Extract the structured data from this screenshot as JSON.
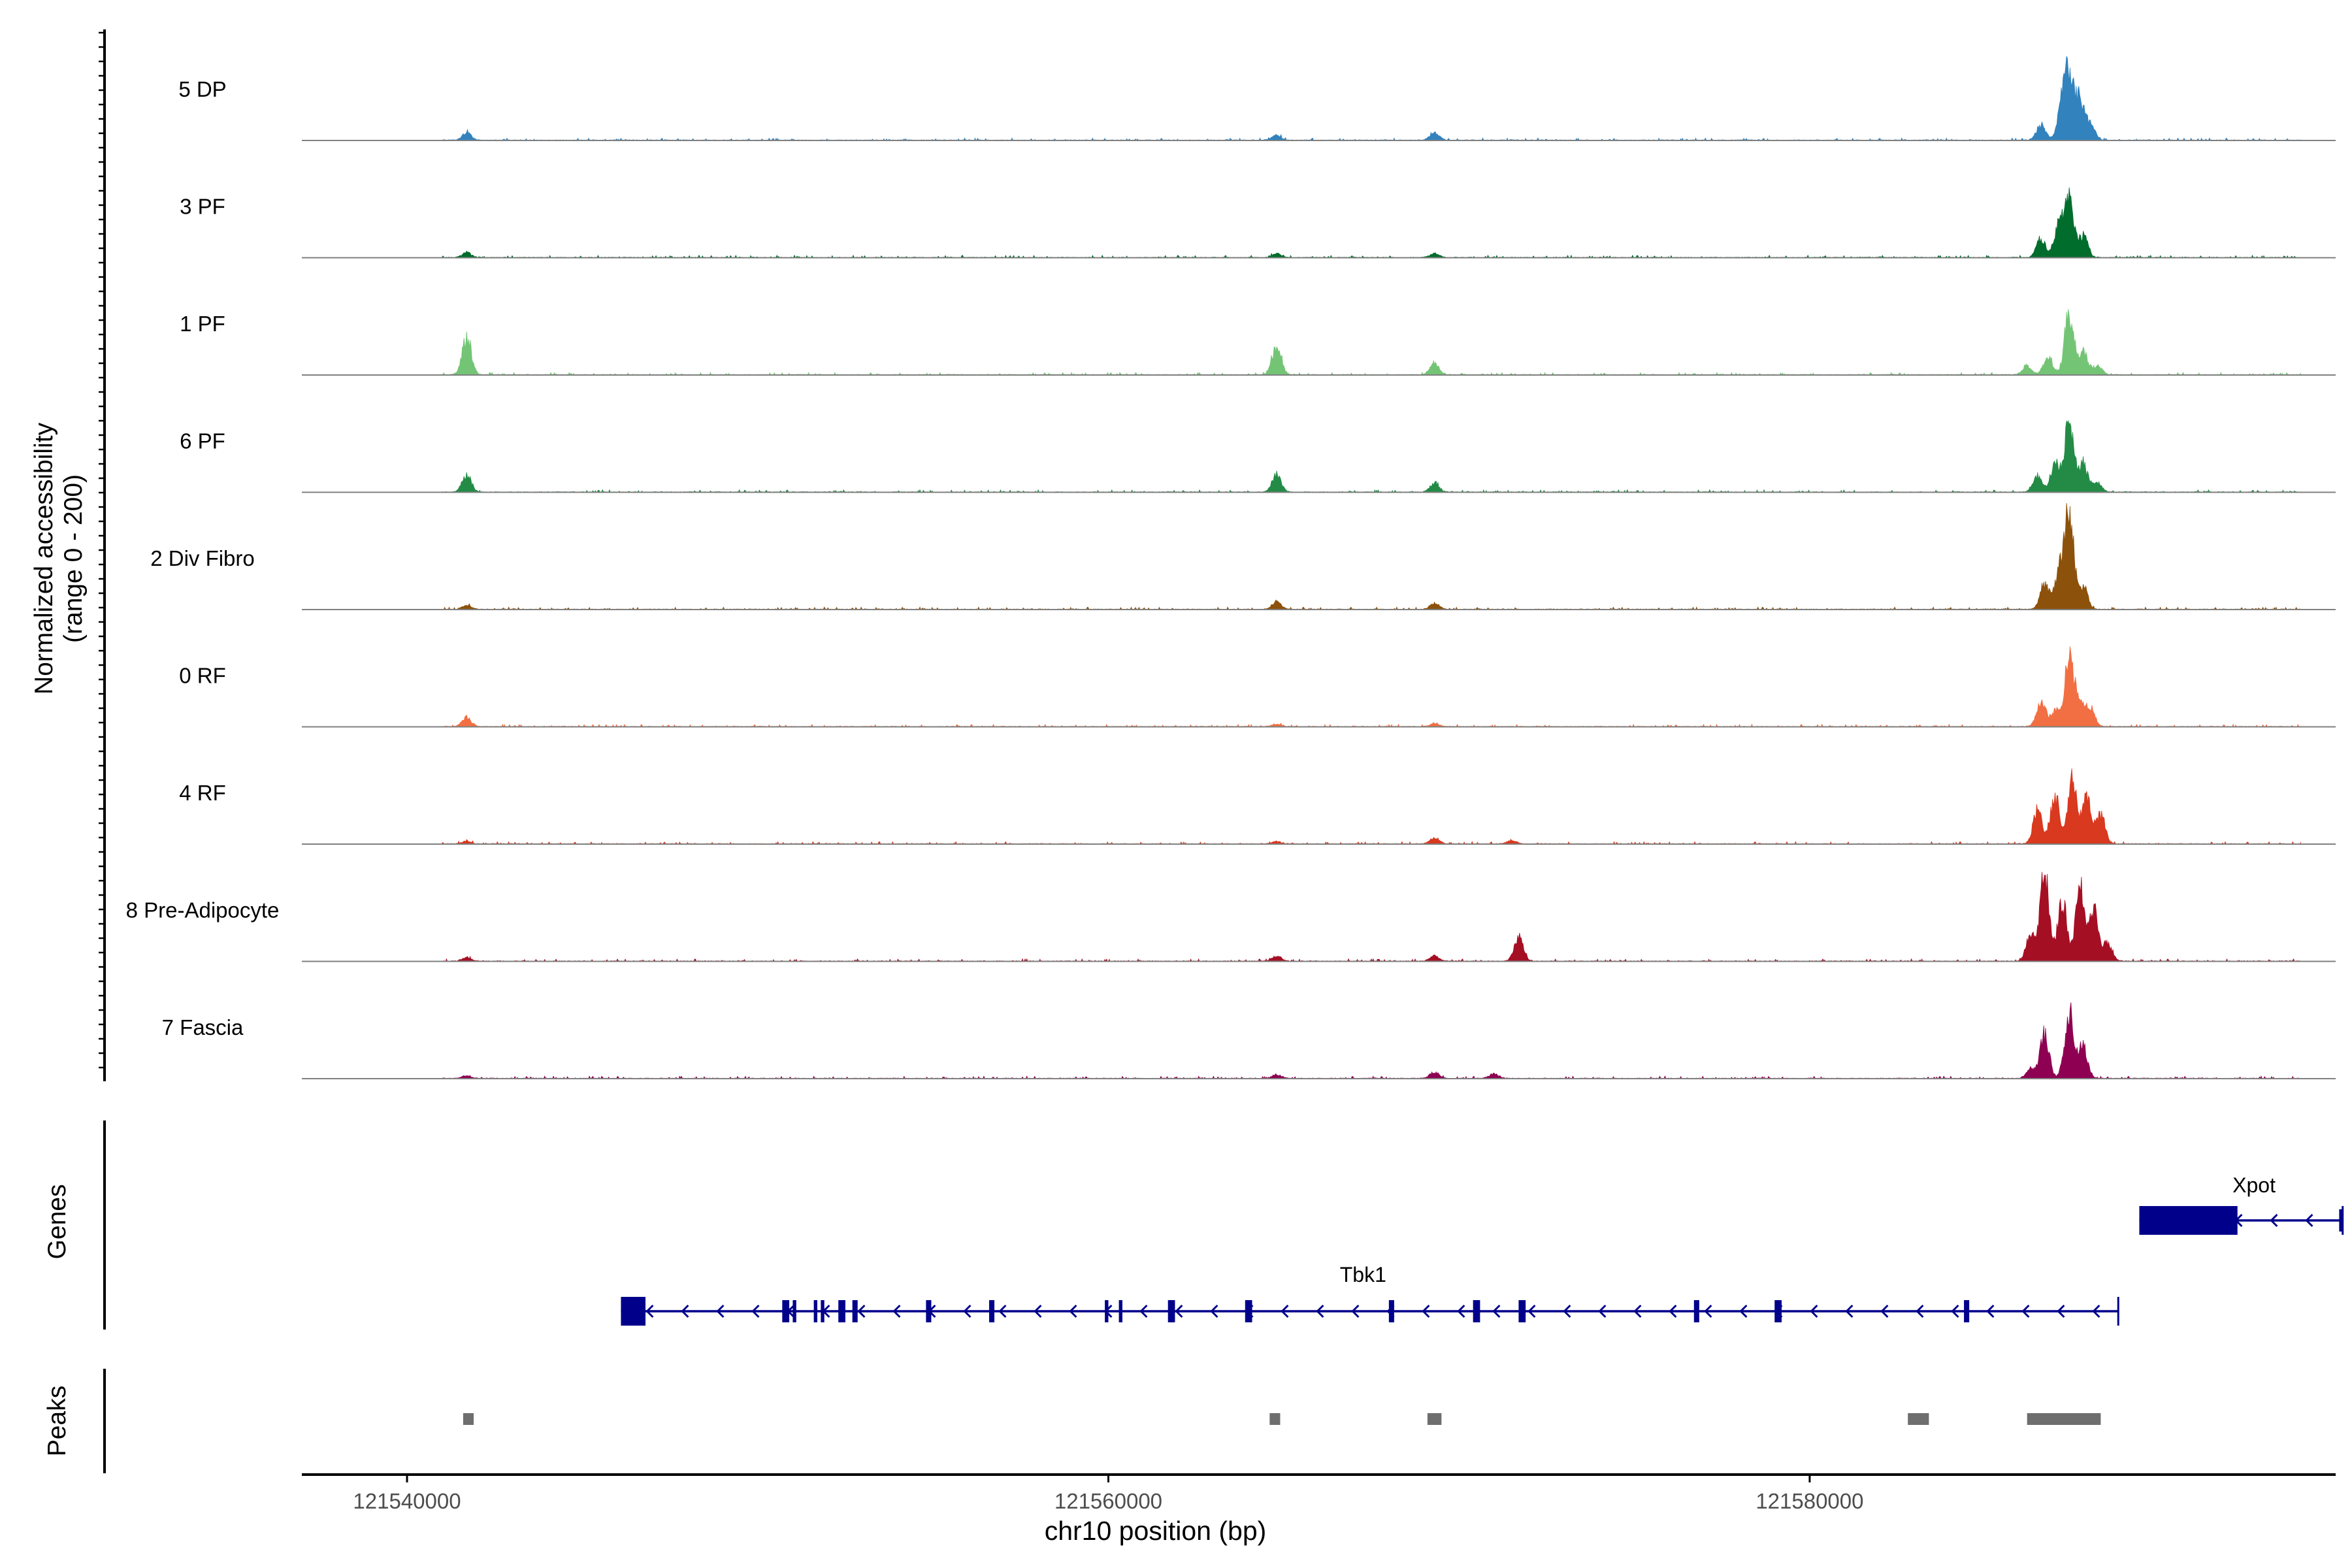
{
  "chart_data": {
    "type": "area",
    "subtype": "genome-coverage-plot",
    "chromosome": "chr10",
    "xlabel": "chr10 position (bp)",
    "xlim": [
      121537000,
      121595000
    ],
    "xticks": [
      121540000,
      121560000,
      121580000
    ],
    "xtick_labels": [
      "121540000",
      "121560000",
      "121580000"
    ],
    "ylabel_line1": "Normalized accessibility",
    "ylabel_line2": "(range 0 - 200)",
    "ylim": [
      0,
      200
    ],
    "panel_labels": {
      "genes": "Genes",
      "peaks": "Peaks"
    },
    "series": [
      {
        "name": "5 DP",
        "color": "#3182bd",
        "peaks": [
          [
            121541700,
            12
          ],
          [
            121564800,
            8
          ],
          [
            121569300,
            12
          ],
          [
            121586600,
            25
          ],
          [
            121587200,
            55
          ],
          [
            121587400,
            100
          ],
          [
            121587700,
            65
          ],
          [
            121588000,
            25
          ]
        ]
      },
      {
        "name": "3 PF",
        "color": "#006d2c",
        "peaks": [
          [
            121541700,
            8
          ],
          [
            121564800,
            6
          ],
          [
            121569300,
            6
          ],
          [
            121586600,
            30
          ],
          [
            121587100,
            50
          ],
          [
            121587400,
            100
          ],
          [
            121587800,
            35
          ]
        ]
      },
      {
        "name": "1 PF",
        "color": "#74c476",
        "peaks": [
          [
            121541700,
            60
          ],
          [
            121564800,
            50
          ],
          [
            121569300,
            18
          ],
          [
            121586200,
            15
          ],
          [
            121586800,
            30
          ],
          [
            121587400,
            100
          ],
          [
            121587800,
            35
          ],
          [
            121588200,
            15
          ]
        ]
      },
      {
        "name": "6 PF",
        "color": "#238b45",
        "peaks": [
          [
            121541700,
            28
          ],
          [
            121564800,
            28
          ],
          [
            121569300,
            15
          ],
          [
            121586500,
            25
          ],
          [
            121587000,
            45
          ],
          [
            121587400,
            120
          ],
          [
            121587800,
            45
          ],
          [
            121588200,
            15
          ]
        ]
      },
      {
        "name": "2 Div Fibro",
        "color": "#8c510a",
        "peaks": [
          [
            121541700,
            6
          ],
          [
            121564800,
            12
          ],
          [
            121569300,
            10
          ],
          [
            121586700,
            40
          ],
          [
            121587100,
            55
          ],
          [
            121587400,
            160
          ],
          [
            121587800,
            35
          ]
        ]
      },
      {
        "name": "0 RF",
        "color": "#f16f43",
        "peaks": [
          [
            121541700,
            15
          ],
          [
            121564800,
            4
          ],
          [
            121569300,
            5
          ],
          [
            121586600,
            40
          ],
          [
            121587000,
            25
          ],
          [
            121587400,
            110
          ],
          [
            121587700,
            40
          ],
          [
            121588000,
            30
          ]
        ]
      },
      {
        "name": "4 RF",
        "color": "#d8391f",
        "peaks": [
          [
            121541700,
            4
          ],
          [
            121564800,
            4
          ],
          [
            121569300,
            10
          ],
          [
            121571500,
            6
          ],
          [
            121586500,
            55
          ],
          [
            121587000,
            80
          ],
          [
            121587500,
            100
          ],
          [
            121587900,
            70
          ],
          [
            121588300,
            45
          ]
        ]
      },
      {
        "name": "8 Pre-Adipocyte",
        "color": "#a50f24",
        "peaks": [
          [
            121541700,
            6
          ],
          [
            121564800,
            8
          ],
          [
            121569300,
            8
          ],
          [
            121571700,
            40
          ],
          [
            121586300,
            40
          ],
          [
            121586700,
            150
          ],
          [
            121587200,
            100
          ],
          [
            121587700,
            120
          ],
          [
            121588100,
            80
          ],
          [
            121588500,
            30
          ]
        ]
      },
      {
        "name": "7 Fascia",
        "color": "#8e0152",
        "peaks": [
          [
            121541700,
            4
          ],
          [
            121564800,
            6
          ],
          [
            121569300,
            10
          ],
          [
            121571000,
            8
          ],
          [
            121586300,
            15
          ],
          [
            121586700,
            70
          ],
          [
            121587400,
            110
          ],
          [
            121587800,
            50
          ]
        ]
      }
    ],
    "genes": [
      {
        "name": "Tbk1",
        "strand": "-",
        "start": 121546100,
        "end": 121588800,
        "exons": [
          [
            121546100,
            121546800
          ],
          [
            121550700,
            121550900
          ],
          [
            121551000,
            121551100
          ],
          [
            121551600,
            121551700
          ],
          [
            121551800,
            121551900
          ],
          [
            121552300,
            121552500
          ],
          [
            121552700,
            121552850
          ],
          [
            121554800,
            121554950
          ],
          [
            121556600,
            121556750
          ],
          [
            121559900,
            121560000
          ],
          [
            121560300,
            121560400
          ],
          [
            121561700,
            121561900
          ],
          [
            121563900,
            121564100
          ],
          [
            121568000,
            121568150
          ],
          [
            121570400,
            121570600
          ],
          [
            121571700,
            121571900
          ],
          [
            121576700,
            121576850
          ],
          [
            121579000,
            121579200
          ],
          [
            121584400,
            121584550
          ]
        ]
      },
      {
        "name": "Xpot",
        "strand": "-",
        "start": 121589400,
        "end": 121595200,
        "exons": [
          [
            121589400,
            121592200
          ],
          [
            121595100,
            121595200
          ]
        ]
      }
    ],
    "peaks": [
      [
        121541600,
        121541900
      ],
      [
        121564600,
        121564900
      ],
      [
        121569100,
        121569500
      ],
      [
        121582800,
        121583400
      ],
      [
        121586200,
        121588300
      ]
    ],
    "grid": false,
    "legend": "none"
  }
}
